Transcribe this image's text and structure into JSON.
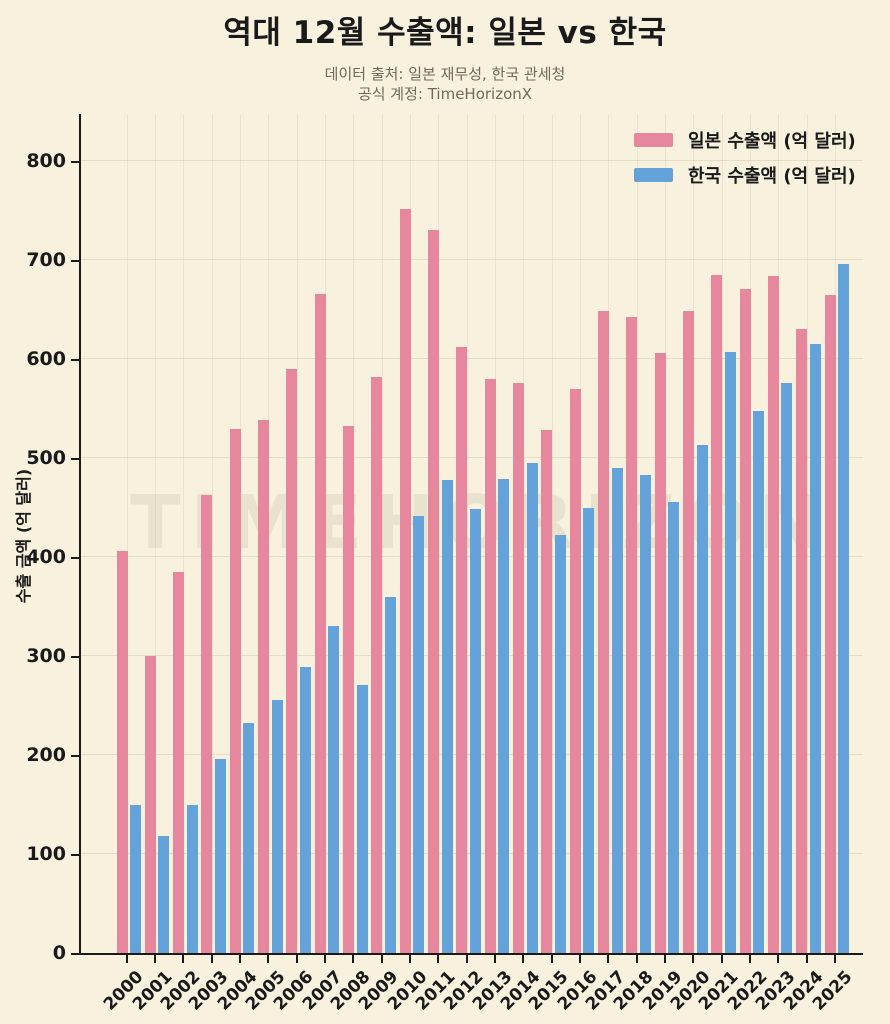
{
  "chart_data": {
    "type": "bar",
    "title": "역대 12월 수출액:  일본 vs 한국",
    "subtitle_lines": [
      "데이터 출처: 일본 재무성, 한국 관세청",
      "공식 계정: TimeHorizonX"
    ],
    "ylabel": "수출 금액 (억 달러)",
    "categories": [
      "2000",
      "2001",
      "2002",
      "2003",
      "2004",
      "2005",
      "2006",
      "2007",
      "2008",
      "2009",
      "2010",
      "2011",
      "2012",
      "2013",
      "2014",
      "2015",
      "2016",
      "2017",
      "2018",
      "2019",
      "2020",
      "2021",
      "2022",
      "2023",
      "2024",
      "2025"
    ],
    "series": [
      {
        "name": "일본 수출액 (억 달러)",
        "key": "japan",
        "color": "#e6879d",
        "values": [
          406,
          300,
          385,
          463,
          529,
          538,
          590,
          666,
          532,
          582,
          752,
          730,
          612,
          580,
          576,
          528,
          570,
          649,
          642,
          606,
          649,
          685,
          671,
          684,
          630,
          665
        ]
      },
      {
        "name": "한국 수출액 (억 달러)",
        "key": "korea",
        "color": "#64a3da",
        "values": [
          150,
          118,
          150,
          196,
          232,
          256,
          289,
          330,
          271,
          360,
          441,
          478,
          449,
          479,
          495,
          422,
          450,
          490,
          483,
          456,
          513,
          607,
          548,
          576,
          615,
          696
        ]
      }
    ],
    "ylim": [
      0,
      848
    ],
    "yticks": [
      0,
      100,
      200,
      300,
      400,
      500,
      600,
      700,
      800
    ],
    "grid": true,
    "legend_position": "top-right",
    "watermark": "TIMEHORIZON",
    "colors": {
      "background": "#f8f1de",
      "axis": "#1a1a1a",
      "subtitle_text": "#6e6a5e"
    }
  }
}
